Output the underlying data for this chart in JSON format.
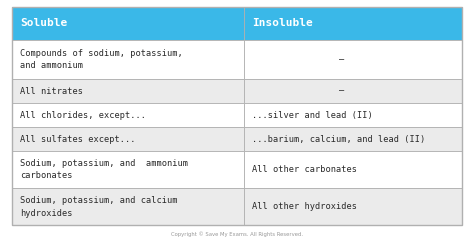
{
  "header": [
    "Soluble",
    "Insoluble"
  ],
  "rows": [
    [
      "Compounds of sodium, potassium,\nand ammonium",
      "–"
    ],
    [
      "All nitrates",
      "–"
    ],
    [
      "All chlorides, except...",
      "...silver and lead (II)"
    ],
    [
      "All sulfates except...",
      "...barium, calcium, and lead (II)"
    ],
    [
      "Sodium, potassium, and  ammonium\ncarbonates",
      "All other carbonates"
    ],
    [
      "Sodium, potassium, and calcium\nhydroxides",
      "All other hydroxides"
    ]
  ],
  "header_bg": "#3ab8e8",
  "header_text_color": "#ffffff",
  "row_bg_even": "#ffffff",
  "row_bg_odd": "#ebebeb",
  "cell_text_color": "#2a2a2a",
  "border_color": "#b0b0b0",
  "col_split": 0.515,
  "footer_text": "Copyright © Save My Exams. All Rights Reserved.",
  "bg_color": "#ffffff"
}
